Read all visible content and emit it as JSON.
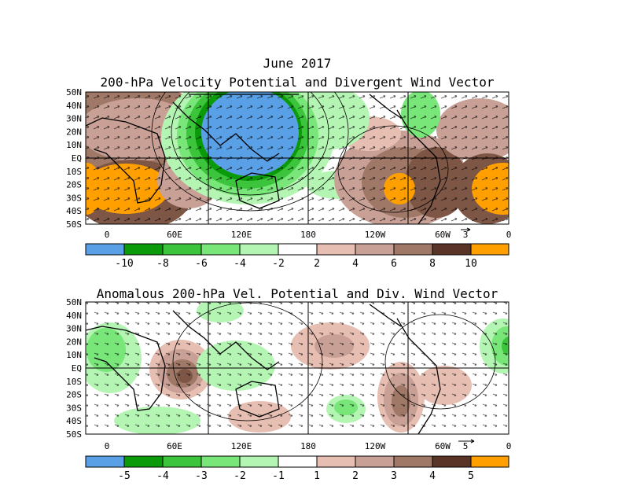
{
  "title": "June 2017",
  "colors": {
    "c_blue": "#5aa0e6",
    "c_dkgreen": "#0a9a0a",
    "c_green": "#3cc43c",
    "c_ltgreen": "#78e678",
    "c_palegreen": "#b4f5b4",
    "c_white": "#ffffff",
    "c_ltbrown": "#e6beb2",
    "c_brown1": "#c8a096",
    "c_brown2": "#a07868",
    "c_brown3": "#7d5646",
    "c_dkbrown": "#5a3426",
    "c_orange": "#ffa000"
  },
  "panels": [
    {
      "title": "200-hPa Velocity Potential and Divergent Wind Vector",
      "lat_labels": [
        "50N",
        "40N",
        "30N",
        "20N",
        "10N",
        "EQ",
        "10S",
        "20S",
        "30S",
        "40S",
        "50S"
      ],
      "lon_labels": [
        "0",
        "60E",
        "120E",
        "180",
        "120W",
        "60W",
        "0"
      ],
      "vector_ref": "3",
      "colorbar": [
        "-10",
        "-8",
        "-6",
        "-4",
        "-2",
        "2",
        "4",
        "6",
        "8",
        "10"
      ]
    },
    {
      "title": "Anomalous 200-hPa Vel. Potential and Div. Wind Vector",
      "lat_labels": [
        "50N",
        "40N",
        "30N",
        "20N",
        "10N",
        "EQ",
        "10S",
        "20S",
        "30S",
        "40S",
        "50S"
      ],
      "lon_labels": [
        "0",
        "60E",
        "120E",
        "180",
        "120W",
        "60W",
        "0"
      ],
      "vector_ref": "5",
      "colorbar": [
        "-5",
        "-4",
        "-3",
        "-2",
        "-1",
        "1",
        "2",
        "3",
        "4",
        "5"
      ]
    }
  ]
}
